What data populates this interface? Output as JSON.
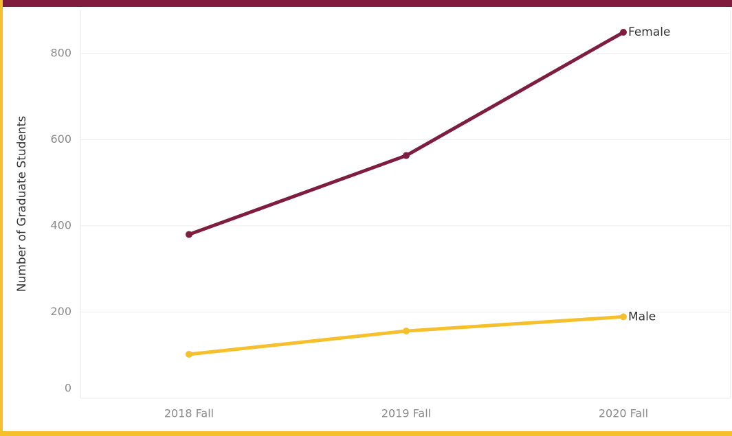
{
  "chart_data": {
    "type": "line",
    "y_label": "Number of Graduate Students",
    "categories": [
      "2018 Fall",
      "2019 Fall",
      "2020 Fall"
    ],
    "series": [
      {
        "name": "Female",
        "color": "#7f1d3f",
        "values": [
          380,
          563,
          849
        ]
      },
      {
        "name": "Male",
        "color": "#f5c02c",
        "values": [
          102,
          156,
          189
        ]
      }
    ],
    "ylim": [
      0,
      900
    ],
    "yticks": [
      0,
      200,
      400,
      600,
      800
    ],
    "grid": true
  }
}
